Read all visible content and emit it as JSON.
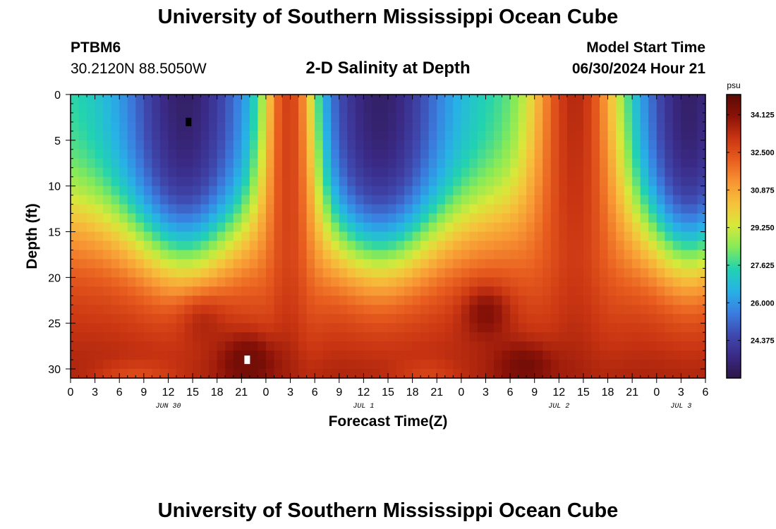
{
  "page": {
    "title": "University of Southern Mississippi Ocean Cube",
    "footer_title": "University of Southern Mississippi Ocean Cube",
    "station_id": "PTBM6",
    "coordinates": "30.2120N  88.5050W",
    "plot_title": "2-D Salinity at Depth",
    "model_start_label": "Model Start Time",
    "model_start_value": "06/30/2024 Hour 21"
  },
  "colors": {
    "colormap": [
      "#2d1646",
      "#3a2a86",
      "#3f4ab0",
      "#3a7fe0",
      "#27b2e6",
      "#22d3b0",
      "#86ea58",
      "#d7e93a",
      "#f6c23c",
      "#f79433",
      "#e85d1f",
      "#c93512",
      "#8b1208",
      "#5a0a04"
    ]
  },
  "chart_data": {
    "type": "heatmap",
    "title": "2-D Salinity at Depth",
    "xlabel": "Forecast Time(Z)",
    "ylabel": "Depth (ft)",
    "x_tick_labels": [
      "0",
      "3",
      "6",
      "9",
      "12",
      "15",
      "18",
      "21",
      "0",
      "3",
      "6",
      "9",
      "12",
      "15",
      "18",
      "21",
      "0",
      "3",
      "6",
      "9",
      "12",
      "15",
      "18",
      "21",
      "0",
      "3",
      "6"
    ],
    "x_range_hours": [
      0,
      78
    ],
    "day_labels": [
      {
        "label": "JUN 30",
        "hour": 12
      },
      {
        "label": "JUL 1",
        "hour": 36
      },
      {
        "label": "JUL 2",
        "hour": 60
      },
      {
        "label": "JUL 3",
        "hour": 75
      }
    ],
    "y_ticks": [
      0,
      5,
      10,
      15,
      20,
      25,
      30
    ],
    "y_range_ft": [
      0,
      31
    ],
    "y_inverted": true,
    "colorbar": {
      "unit": "psu",
      "min": 22.75,
      "max": 35.0,
      "tick_values": [
        34.125,
        32.5,
        30.875,
        29.25,
        27.625,
        26.0,
        24.375
      ],
      "tick_labels": [
        "34.125",
        "32.500",
        "30.875",
        "29.250",
        "27.625",
        "26.000",
        "24.375"
      ]
    },
    "field_description": {
      "surface_fresh_centers_hours": [
        14,
        38,
        76
      ],
      "salty_plume_hours": [
        27,
        62
      ],
      "halocline_depth_ft_range": [
        12,
        18
      ],
      "bottom_max_psu": 34.5,
      "surface_min_psu": 23.2
    },
    "markers": [
      {
        "name": "min-marker",
        "hour": 14.5,
        "depth_ft": 3,
        "color": "#000000"
      },
      {
        "name": "max-marker",
        "hour": 21.7,
        "depth_ft": 29,
        "color": "#ffffff"
      }
    ]
  }
}
